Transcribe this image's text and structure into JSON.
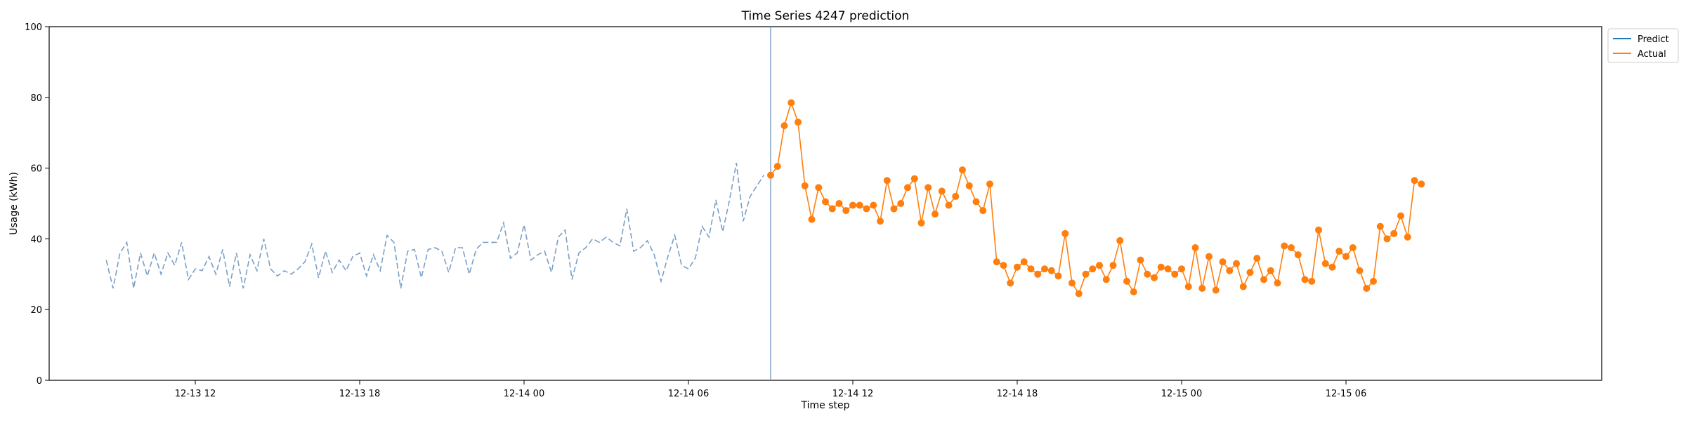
{
  "chart_data": {
    "type": "line",
    "title": "Time Series 4247 prediction",
    "xlabel": "Time step",
    "ylabel": "Usage (kWh)",
    "ylim": [
      0,
      100
    ],
    "yticks": [
      0,
      20,
      40,
      60,
      80,
      100
    ],
    "xlim": [
      "2024-12-13 06:40",
      "2024-12-15 15:20"
    ],
    "xticks": [
      {
        "t": "2024-12-13 12:00",
        "label": "12-13 12"
      },
      {
        "t": "2024-12-13 18:00",
        "label": "12-13 18"
      },
      {
        "t": "2024-12-14 00:00",
        "label": "12-14 00"
      },
      {
        "t": "2024-12-14 06:00",
        "label": "12-14 06"
      },
      {
        "t": "2024-12-14 12:00",
        "label": "12-14 12"
      },
      {
        "t": "2024-12-14 18:00",
        "label": "12-14 18"
      },
      {
        "t": "2024-12-15 00:00",
        "label": "12-15 00"
      },
      {
        "t": "2024-12-15 06:00",
        "label": "12-15 06"
      }
    ],
    "start_time": "2024-12-13 08:45",
    "interval_minutes": 15,
    "split_time": "2024-12-14 09:00",
    "history": [
      34,
      26,
      36,
      39,
      26,
      36,
      29.5,
      36,
      30,
      36,
      32.5,
      39,
      28.5,
      31.5,
      31,
      35,
      30,
      37,
      26.5,
      36,
      26,
      35.5,
      31,
      40,
      31.5,
      29.5,
      31,
      30,
      31.5,
      33.5,
      38.5,
      29,
      36.5,
      30.5,
      34,
      31,
      35,
      36,
      29.5,
      35.5,
      31,
      41,
      39,
      26,
      36.5,
      37,
      29,
      37,
      37.5,
      36.5,
      30.5,
      37.5,
      37.5,
      30,
      37,
      39,
      39,
      39,
      44.5,
      34.5,
      36,
      44,
      34,
      35.5,
      36.5,
      30.5,
      40.5,
      42.5,
      28.5,
      36,
      37.5,
      40,
      39,
      40.5,
      39,
      38,
      48.5,
      36.5,
      37.5,
      39.5,
      35.5,
      28,
      35,
      41,
      32.5,
      31.5,
      34.5,
      43.5,
      40.5,
      51,
      42,
      51,
      61.5,
      45,
      52,
      55,
      58
    ],
    "series": [
      {
        "name": "Predict",
        "color": "#1f77b4",
        "values": []
      },
      {
        "name": "Actual",
        "color": "#ff7f0e",
        "values": [
          58,
          60.5,
          72,
          78.5,
          73,
          55,
          45.5,
          54.5,
          50.5,
          48.5,
          50,
          48,
          49.5,
          49.5,
          48.5,
          49.5,
          45,
          56.5,
          48.5,
          50,
          54.5,
          57,
          44.5,
          54.5,
          47,
          53.5,
          49.5,
          52,
          59.5,
          55,
          50.5,
          48,
          55.5,
          33.5,
          32.5,
          27.5,
          32,
          33.5,
          31.5,
          30,
          31.5,
          31,
          29.5,
          41.5,
          27.5,
          24.5,
          30,
          31.5,
          32.5,
          28.5,
          32.5,
          39.5,
          28,
          25,
          34,
          30,
          29,
          32,
          31.5,
          30,
          31.5,
          26.5,
          37.5,
          26,
          35,
          25.5,
          33.5,
          31,
          33,
          26.5,
          30.5,
          34.5,
          28.5,
          31,
          27.5,
          38,
          37.5,
          35.5,
          28.5,
          28,
          42.5,
          33,
          32,
          36.5,
          35,
          37.5,
          31,
          26,
          28,
          43.5,
          40,
          41.5,
          46.5,
          40.5,
          56.5,
          55.5
        ]
      }
    ],
    "history_color": "#7b9fc7",
    "split_line_color": "#7b9fc7",
    "legend_position": "outside-upper-right",
    "grid": false
  }
}
